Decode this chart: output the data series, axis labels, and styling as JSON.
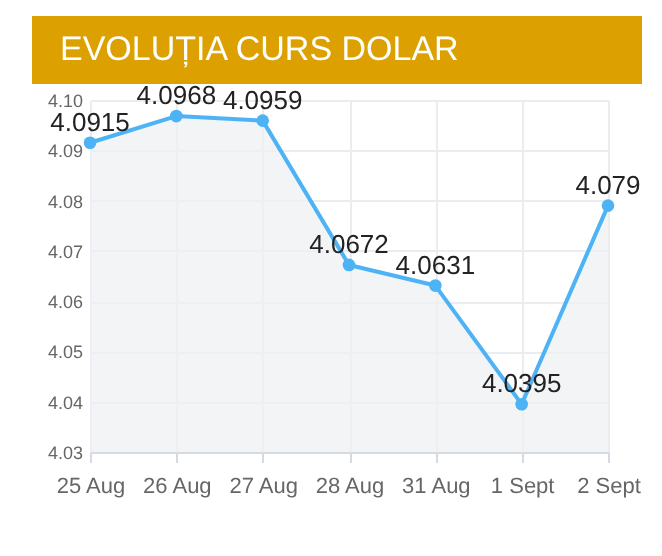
{
  "chart_data": {
    "type": "area",
    "title": "EVOLUȚIA CURS DOLAR",
    "categories": [
      "25 Aug",
      "26 Aug",
      "27 Aug",
      "28 Aug",
      "31 Aug",
      "1 Sept",
      "2 Sept"
    ],
    "values": [
      4.0915,
      4.0968,
      4.0959,
      4.0672,
      4.0631,
      4.0395,
      4.079
    ],
    "color": "#4db3f5",
    "ylim": [
      4.03,
      4.1
    ],
    "yticks": [
      4.03,
      4.04,
      4.05,
      4.06,
      4.07,
      4.08,
      4.09,
      {
        "value": 4.1,
        "label": "4.10"
      }
    ],
    "grid": true,
    "marker": "circle",
    "data_labels": true
  }
}
